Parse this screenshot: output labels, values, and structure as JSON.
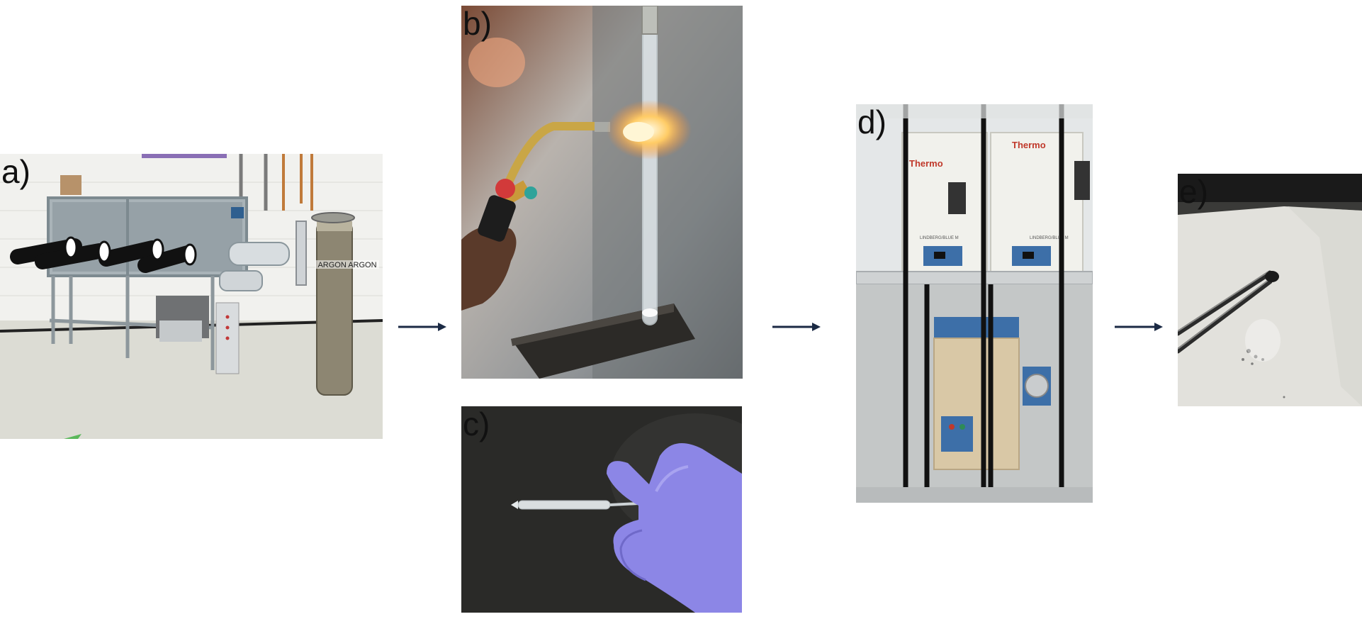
{
  "panels": [
    {
      "label": "a)",
      "content": "glovebox-with-argon-tank",
      "tank_text": "ARGON  ARGON"
    },
    {
      "label": "b)",
      "content": "torch-sealing-quartz-tube"
    },
    {
      "label": "c)",
      "content": "gloved-hand-holding-sealed-ampoule"
    },
    {
      "label": "d)",
      "content": "tube-furnaces-in-cabinet",
      "oven_brand": "Thermo",
      "oven_model": "LINDBERG/BLUE M"
    },
    {
      "label": "e)",
      "content": "tweezers-holding-crystal"
    }
  ],
  "colors": {
    "arrow": "#1b2a44",
    "glove": "#8c86e6",
    "flame": "#ffb347",
    "furnace_blue": "#3d6fa8"
  }
}
